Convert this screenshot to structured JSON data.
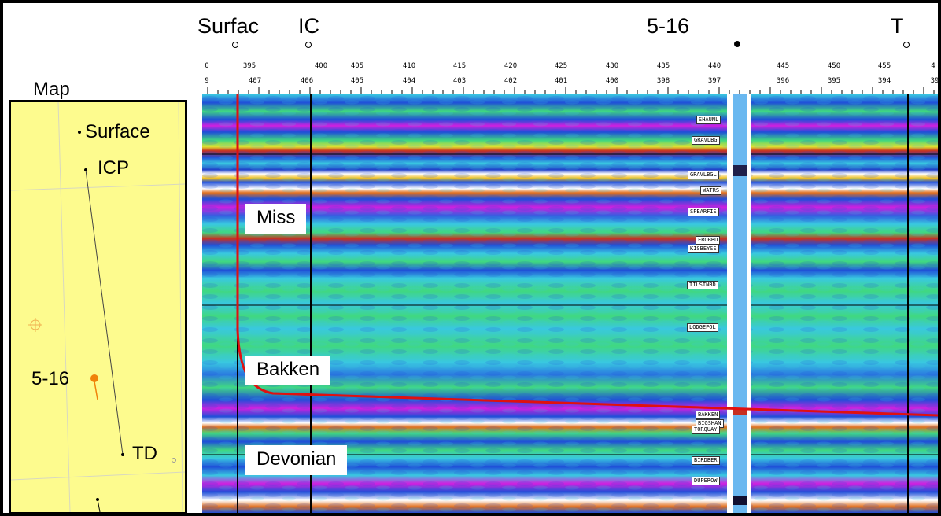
{
  "top_labels": {
    "surface": "Surfac",
    "icp": "IC",
    "well": "5-16",
    "td": "T"
  },
  "scale": {
    "trace_numbers": [
      "0",
      "395",
      "400",
      "405",
      "410",
      "415",
      "420",
      "425",
      "430",
      "435",
      "440",
      "445",
      "450",
      "455",
      "4"
    ],
    "depth_numbers": [
      "9",
      "407",
      "406",
      "405",
      "404",
      "403",
      "402",
      "401",
      "400",
      "398",
      "397",
      "396",
      "395",
      "394",
      "39"
    ]
  },
  "map": {
    "title": "Map",
    "labels": {
      "surface": "Surface",
      "icp": "ICP",
      "well": "5-16",
      "td": "TD"
    }
  },
  "zones": {
    "miss": "Miss",
    "bakken": "Bakken",
    "devonian": "Devonian"
  },
  "formations": [
    "SHAUNL",
    "GRAVLBG",
    "GRAVLBGL",
    "WATRS",
    "SPEARFIS",
    "FROBBD",
    "KISBEYSS",
    "TILSTNBD",
    "LODGEPOL",
    "BAKKEN",
    "BIGSHAN",
    "TORQUAY",
    "BIRDBER",
    "DUPEROW"
  ],
  "colors": {
    "well_path": "#e01010",
    "map_background": "#fdfb8e",
    "well_marker": "#f0820a",
    "seismic_blue": "#1f4fd8",
    "seismic_green": "#39d27a",
    "seismic_cyan": "#38b8e0",
    "seismic_magenta": "#d020e0",
    "seismic_white": "#ffffff"
  }
}
